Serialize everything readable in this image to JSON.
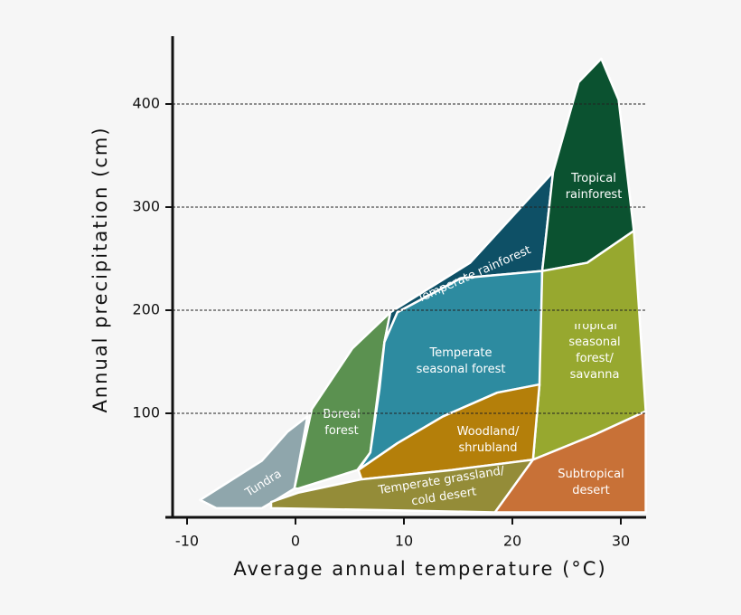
{
  "chart_data": {
    "type": "region",
    "x_label": "Average annual temperature (°C)",
    "y_label": "Annual precipitation (cm)",
    "xlim": [
      -11.3,
      32.3
    ],
    "ylim": [
      0,
      466
    ],
    "xticks": [
      -10,
      0,
      10,
      20,
      30
    ],
    "yticks": [
      100,
      200,
      300,
      400
    ],
    "grid": true,
    "regions": [
      {
        "name": "Tundra",
        "color": "#8fa6ac",
        "x": [
          -8.8,
          -6.4,
          -3.1,
          -0.75,
          1.1,
          -0.1,
          -1.8,
          -3.1,
          -7.3
        ],
        "y": [
          16,
          32,
          54,
          82,
          97,
          27,
          16,
          8,
          8
        ]
      },
      {
        "name": "Boreal forest",
        "color": "#5b9150",
        "x": [
          -0.1,
          1.5,
          5.25,
          8.75,
          8.2,
          6.9,
          5.7,
          0.25
        ],
        "y": [
          27,
          104,
          163,
          198,
          169,
          62,
          45,
          27
        ]
      },
      {
        "name": "Temperate rainforest",
        "color": "#0e5066",
        "x": [
          8.2,
          8.75,
          16.1,
          23.75,
          22.75,
          15.25,
          9.4
        ],
        "y": [
          169,
          198,
          246,
          334,
          238,
          231,
          198
        ]
      },
      {
        "name": "Temperate seasonal forest",
        "color": "#2d8ba0",
        "x": [
          8.2,
          9.4,
          15.25,
          22.75,
          22.6,
          18.6,
          13.6,
          9.4,
          5.8,
          6.9,
          7.75
        ],
        "y": [
          169,
          198,
          231,
          238,
          128,
          120,
          97,
          71,
          45,
          62,
          124
        ]
      },
      {
        "name": "Tropical rainforest",
        "color": "#0b5230",
        "x": [
          23.75,
          26.1,
          28.2,
          29.8,
          31.2,
          26.9,
          22.75
        ],
        "y": [
          334,
          421,
          444,
          404,
          277,
          246,
          238
        ]
      },
      {
        "name": "Tropical seasonal forest/ savanna",
        "color": "#97a82f",
        "x": [
          22.75,
          26.9,
          31.2,
          32.3,
          27.75,
          21.9,
          22.5
        ],
        "y": [
          238,
          246,
          277,
          102,
          80,
          55,
          128
        ]
      },
      {
        "name": "Woodland/ shrubland",
        "color": "#b47f0a",
        "x": [
          5.8,
          9.4,
          13.6,
          18.6,
          22.5,
          21.9,
          14.4,
          6.1
        ],
        "y": [
          45,
          71,
          97,
          120,
          128,
          55,
          45,
          36
        ]
      },
      {
        "name": "Temperate grassland/ cold desert",
        "color": "#948c38",
        "x": [
          -2.25,
          0.25,
          6.1,
          14.4,
          21.9,
          18.4,
          8.6,
          -2.25
        ],
        "y": [
          14,
          23,
          36,
          45,
          55,
          4,
          6,
          8
        ]
      },
      {
        "name": "Subtropical desert",
        "color": "#c87137",
        "x": [
          21.9,
          27.75,
          32.3,
          32.3,
          18.4
        ],
        "y": [
          55,
          80,
          102,
          4,
          4
        ]
      }
    ]
  }
}
